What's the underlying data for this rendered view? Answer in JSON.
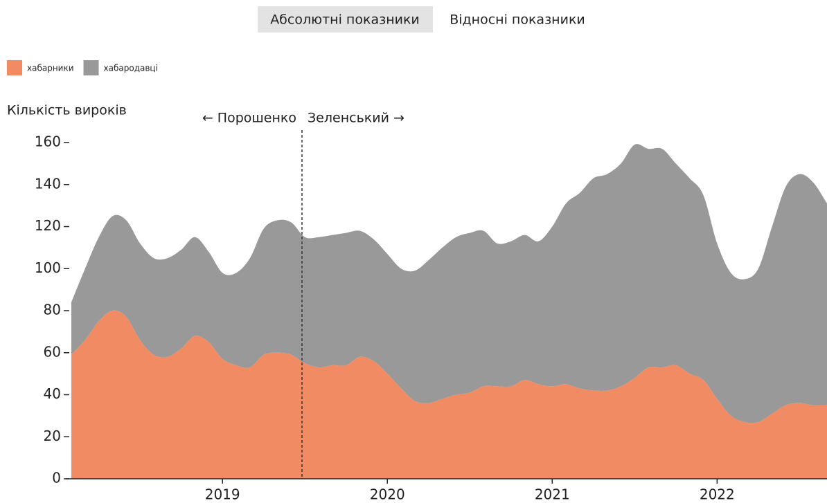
{
  "toggle": {
    "options": [
      "Абсолютні показники",
      "Відносні показники"
    ]
  },
  "chart_data": {
    "type": "stacked-area",
    "y_label": "Кількість вироків",
    "annotations": [
      "← Порошенко",
      "Зеленський →"
    ],
    "categories": [
      null,
      null,
      null,
      null,
      null,
      null,
      null,
      null,
      null,
      null,
      null,
      "2019",
      null,
      null,
      null,
      null,
      null,
      null,
      null,
      null,
      null,
      null,
      null,
      "2020",
      null,
      null,
      null,
      null,
      null,
      null,
      null,
      null,
      null,
      null,
      null,
      "2021",
      null,
      null,
      null,
      null,
      null,
      null,
      null,
      null,
      null,
      null,
      null,
      "2022",
      null,
      null,
      null,
      null,
      null,
      null,
      null,
      null
    ],
    "series": [
      {
        "name": "хабарники",
        "color": "#f08b63",
        "values": [
          59,
          66,
          75,
          80,
          77,
          66,
          59,
          58,
          62,
          68,
          65,
          57,
          54,
          53,
          59,
          60,
          59,
          55,
          53,
          54,
          54,
          58,
          56,
          50,
          43,
          37,
          36,
          38,
          40,
          41,
          44,
          44,
          44,
          47,
          45,
          44,
          45,
          43,
          42,
          42,
          44,
          48,
          53,
          53,
          54,
          50,
          47,
          38,
          30,
          27,
          27,
          31,
          35,
          36,
          35,
          35
        ]
      },
      {
        "name": "хабародавці",
        "color": "#999999",
        "values": [
          25,
          34,
          40,
          45,
          46,
          46,
          46,
          47,
          47,
          47,
          43,
          41,
          44,
          52,
          60,
          63,
          63,
          60,
          62,
          62,
          63,
          60,
          58,
          57,
          57,
          62,
          68,
          72,
          75,
          76,
          74,
          68,
          69,
          69,
          68,
          76,
          86,
          93,
          101,
          103,
          106,
          111,
          104,
          104,
          96,
          93,
          88,
          74,
          68,
          68,
          73,
          89,
          104,
          109,
          106,
          96
        ]
      }
    ],
    "ylim": [
      0,
      160
    ],
    "yticks": [
      0,
      20,
      40,
      60,
      80,
      100,
      120,
      140,
      160
    ]
  }
}
